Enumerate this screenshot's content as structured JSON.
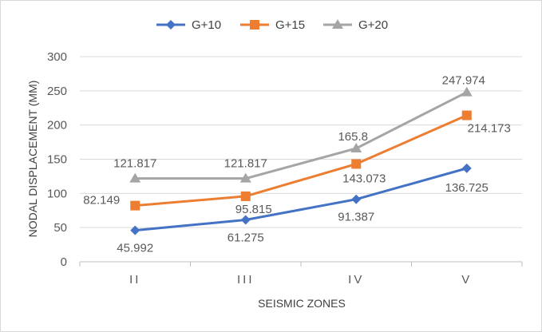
{
  "chart_data": {
    "type": "line",
    "title": "",
    "xlabel": "SEISMIC ZONES",
    "ylabel": "NODAL DISPLACEMENT (MM)",
    "categories": [
      "II",
      "III",
      "IV",
      "V"
    ],
    "ylim": [
      0,
      300
    ],
    "yticks": [
      "0",
      "50",
      "100",
      "150",
      "200",
      "250",
      "300"
    ],
    "grid": true,
    "legend_position": "top",
    "series": [
      {
        "name": "G+10",
        "color": "#4472c4",
        "marker": "diamond",
        "values": [
          45.992,
          61.275,
          91.387,
          136.725
        ],
        "labels": [
          "45.992",
          "61.275",
          "91.387",
          "136.725"
        ]
      },
      {
        "name": "G+15",
        "color": "#ed7d31",
        "marker": "square",
        "values": [
          82.149,
          95.815,
          143.073,
          214.173
        ],
        "labels": [
          "82.149",
          "95.815",
          "143.073",
          "214.173"
        ]
      },
      {
        "name": "G+20",
        "color": "#a5a5a5",
        "marker": "triangle",
        "values": [
          121.817,
          121.817,
          165.8,
          247.974
        ],
        "labels": [
          "121.817",
          "121.817",
          "165.8",
          "247.974"
        ]
      }
    ]
  }
}
